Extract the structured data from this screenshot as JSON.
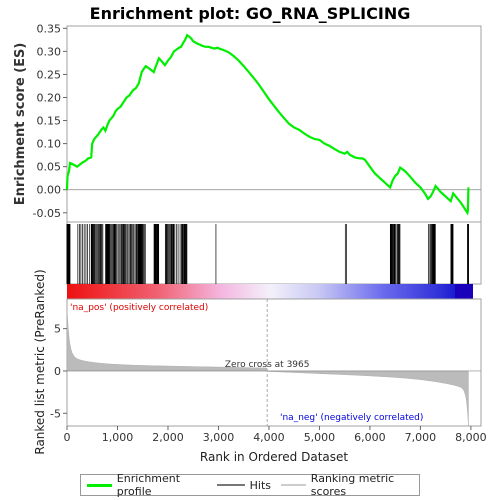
{
  "chart_data": {
    "type": "line",
    "title": "Enrichment plot: GO_RNA_SPLICING",
    "ylabel_top": "Enrichment score (ES)",
    "ylabel_bottom": "Ranked list metric (PreRanked)",
    "xlabel": "Rank in Ordered Dataset",
    "x_ticks": [
      "0",
      "1,000",
      "2,000",
      "3,000",
      "4,000",
      "5,000",
      "6,000",
      "7,000",
      "8,000"
    ],
    "x_tick_values": [
      0,
      1000,
      2000,
      3000,
      4000,
      5000,
      6000,
      7000,
      8000
    ],
    "es_ticks": [
      "-0.05",
      "0.00",
      "0.05",
      "0.10",
      "0.15",
      "0.20",
      "0.25",
      "0.30",
      "0.35"
    ],
    "es_tick_values": [
      -0.05,
      0.0,
      0.05,
      0.1,
      0.15,
      0.2,
      0.25,
      0.3,
      0.35
    ],
    "es_ylim": [
      -0.07,
      0.355
    ],
    "metric_ticks": [
      "-5",
      "0",
      "5"
    ],
    "metric_tick_values": [
      -5,
      0,
      5
    ],
    "metric_ylim": [
      -6.5,
      8.5
    ],
    "xlim": [
      0,
      8200
    ],
    "n_genes": 7950,
    "zero_cross_label": "Zero cross at 3965",
    "zero_cross": 3965,
    "pos_label": "'na_pos' (positively correlated)",
    "neg_label": "'na_neg' (negatively correlated)",
    "es_series": {
      "name": "Enrichment profile",
      "color": "#00ee00",
      "x": [
        0,
        10,
        40,
        60,
        120,
        200,
        260,
        320,
        360,
        420,
        480,
        500,
        540,
        580,
        620,
        680,
        720,
        760,
        800,
        840,
        880,
        920,
        960,
        1000,
        1060,
        1120,
        1180,
        1240,
        1300,
        1360,
        1420,
        1480,
        1520,
        1560,
        1600,
        1660,
        1720,
        1760,
        1820,
        1880,
        1940,
        2000,
        2060,
        2120,
        2180,
        2220,
        2260,
        2300,
        2340,
        2380,
        2420,
        2460,
        2500,
        2560,
        2620,
        2680,
        2740,
        2800,
        2860,
        2920,
        2980,
        3040,
        3100,
        3200,
        3300,
        3400,
        3500,
        3600,
        3700,
        3800,
        3900,
        4000,
        4100,
        4200,
        4300,
        4400,
        4500,
        4600,
        4700,
        4800,
        4900,
        5000,
        5100,
        5200,
        5300,
        5400,
        5500,
        5550,
        5600,
        5700,
        5800,
        5850,
        5900,
        6000,
        6100,
        6200,
        6300,
        6400,
        6450,
        6500,
        6550,
        6600,
        6700,
        6800,
        6900,
        7000,
        7100,
        7150,
        7200,
        7250,
        7300,
        7350,
        7400,
        7500,
        7600,
        7650,
        7700,
        7800,
        7900,
        7930,
        7940,
        7950
      ],
      "y": [
        0.0,
        0.03,
        0.04,
        0.058,
        0.055,
        0.05,
        0.055,
        0.06,
        0.062,
        0.068,
        0.07,
        0.1,
        0.11,
        0.115,
        0.12,
        0.13,
        0.135,
        0.128,
        0.14,
        0.15,
        0.155,
        0.16,
        0.17,
        0.175,
        0.18,
        0.19,
        0.2,
        0.205,
        0.215,
        0.22,
        0.23,
        0.255,
        0.262,
        0.268,
        0.265,
        0.26,
        0.255,
        0.268,
        0.285,
        0.278,
        0.27,
        0.28,
        0.288,
        0.3,
        0.305,
        0.308,
        0.31,
        0.318,
        0.325,
        0.335,
        0.332,
        0.328,
        0.322,
        0.318,
        0.315,
        0.312,
        0.31,
        0.31,
        0.308,
        0.306,
        0.308,
        0.305,
        0.303,
        0.298,
        0.29,
        0.28,
        0.268,
        0.255,
        0.242,
        0.228,
        0.212,
        0.196,
        0.182,
        0.168,
        0.155,
        0.143,
        0.135,
        0.13,
        0.122,
        0.115,
        0.11,
        0.108,
        0.1,
        0.095,
        0.088,
        0.082,
        0.078,
        0.082,
        0.076,
        0.07,
        0.068,
        0.068,
        0.065,
        0.05,
        0.035,
        0.025,
        0.015,
        0.005,
        0.02,
        0.03,
        0.035,
        0.048,
        0.04,
        0.028,
        0.015,
        0.005,
        -0.01,
        -0.02,
        -0.015,
        -0.005,
        0.008,
        0.002,
        -0.005,
        -0.015,
        -0.025,
        -0.008,
        -0.015,
        -0.028,
        -0.045,
        -0.05,
        -0.045,
        0.005
      ]
    },
    "hits_label": "Hits",
    "metric_label": "Ranking metric scores",
    "hits_color": "#000000",
    "metric_color": "#bbbbbb",
    "axis_color": "#a0a0a0",
    "pos_color": "#ee0000",
    "neg_color": "#0000ee"
  },
  "legend": {
    "es": "Enrichment profile",
    "hits": "Hits",
    "metric": "Ranking metric scores"
  }
}
